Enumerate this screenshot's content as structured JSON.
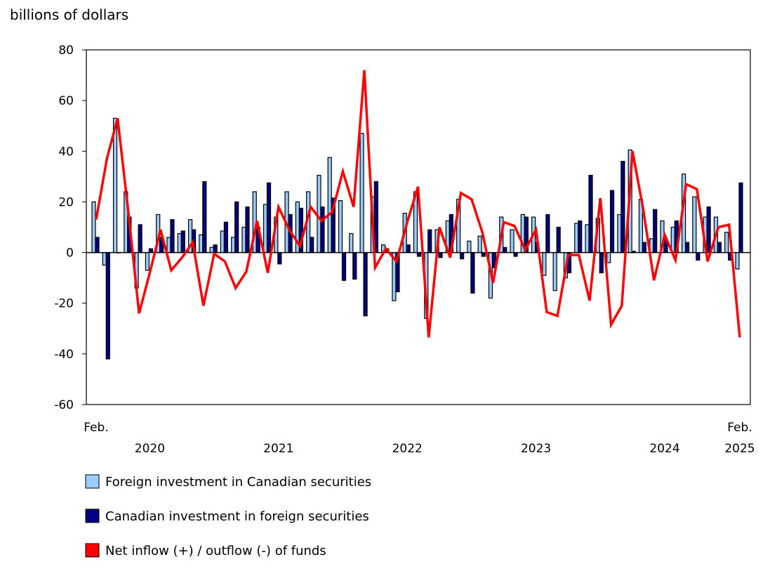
{
  "chart_data": {
    "type": "bar+line",
    "title": "",
    "ylabel": "billions of dollars",
    "ylim": [
      -60,
      80
    ],
    "yticks": [
      80,
      60,
      40,
      20,
      0,
      -20,
      -40,
      -60
    ],
    "x_start": "2020-02",
    "x_end": "2025-02",
    "x_tick_labels": [
      {
        "month": "2020-02",
        "label": "Feb."
      },
      {
        "month": "2025-02",
        "label": "Feb."
      }
    ],
    "year_labels": [
      {
        "month": "2020-07",
        "label": "2020"
      },
      {
        "month": "2021-07",
        "label": "2021"
      },
      {
        "month": "2022-07",
        "label": "2022"
      },
      {
        "month": "2023-07",
        "label": "2023"
      },
      {
        "month": "2024-07",
        "label": "2024"
      },
      {
        "month": "2025-02",
        "label": "2025"
      }
    ],
    "grid": false,
    "legend_placement": "bottom",
    "series": [
      {
        "name": "Foreign investment in Canadian securities",
        "type": "bar",
        "color": "#99ccff",
        "values": [
          20,
          -5,
          53,
          24,
          -14,
          -7,
          15,
          6,
          7.5,
          13,
          7,
          2,
          8.5,
          6,
          10,
          24,
          19,
          14,
          24,
          20,
          24,
          30.5,
          37.5,
          20.5,
          7.5,
          47,
          22,
          3,
          -19,
          15.5,
          24,
          -26,
          9,
          12.5,
          21,
          4.5,
          6.5,
          -18,
          14,
          9,
          15,
          14,
          -9,
          -15,
          -10,
          11.5,
          11,
          13.5,
          -4,
          15,
          40.5,
          21,
          5.5,
          12.5,
          10,
          31,
          22,
          14,
          14,
          8,
          -6.5
        ]
      },
      {
        "name": "Canadian investment in foreign securities",
        "type": "bar",
        "color": "#000080",
        "values": [
          6,
          -42,
          0,
          14,
          11,
          1.5,
          6,
          13,
          8.5,
          9,
          28,
          3,
          12,
          20,
          18,
          10,
          27.5,
          -4.5,
          15,
          17.5,
          6,
          18,
          21.5,
          -11,
          -10.5,
          -25,
          28,
          1.5,
          -15.5,
          3,
          -1.5,
          9,
          -2,
          15,
          -2.5,
          -16,
          -1.5,
          -6,
          2,
          -1.5,
          14,
          4,
          15,
          10,
          -8,
          12.5,
          30.5,
          -8,
          24.5,
          36,
          0.5,
          4,
          17,
          5,
          12.5,
          4,
          -3,
          18,
          4,
          -3,
          27.5
        ]
      },
      {
        "name": "Net inflow (+) / outflow (-) of funds",
        "type": "line",
        "color": "#ff0000",
        "values": [
          13,
          37,
          53,
          16,
          -24,
          -8,
          9,
          -7,
          -2,
          4,
          -21,
          -0.5,
          -3.5,
          -14,
          -7.5,
          12.5,
          -8,
          18,
          9,
          2.5,
          18,
          12.5,
          16,
          32,
          18,
          72,
          -6,
          1.5,
          -3.5,
          12,
          26,
          -33.5,
          10,
          -2,
          23.5,
          21,
          8,
          -12,
          12,
          10.5,
          1,
          9,
          -23.5,
          -25,
          -1,
          -1,
          -19,
          21.5,
          -28.5,
          -21,
          40,
          17,
          -11,
          7,
          -3,
          27,
          25,
          -3.5,
          10,
          11,
          -33.5
        ]
      }
    ]
  }
}
